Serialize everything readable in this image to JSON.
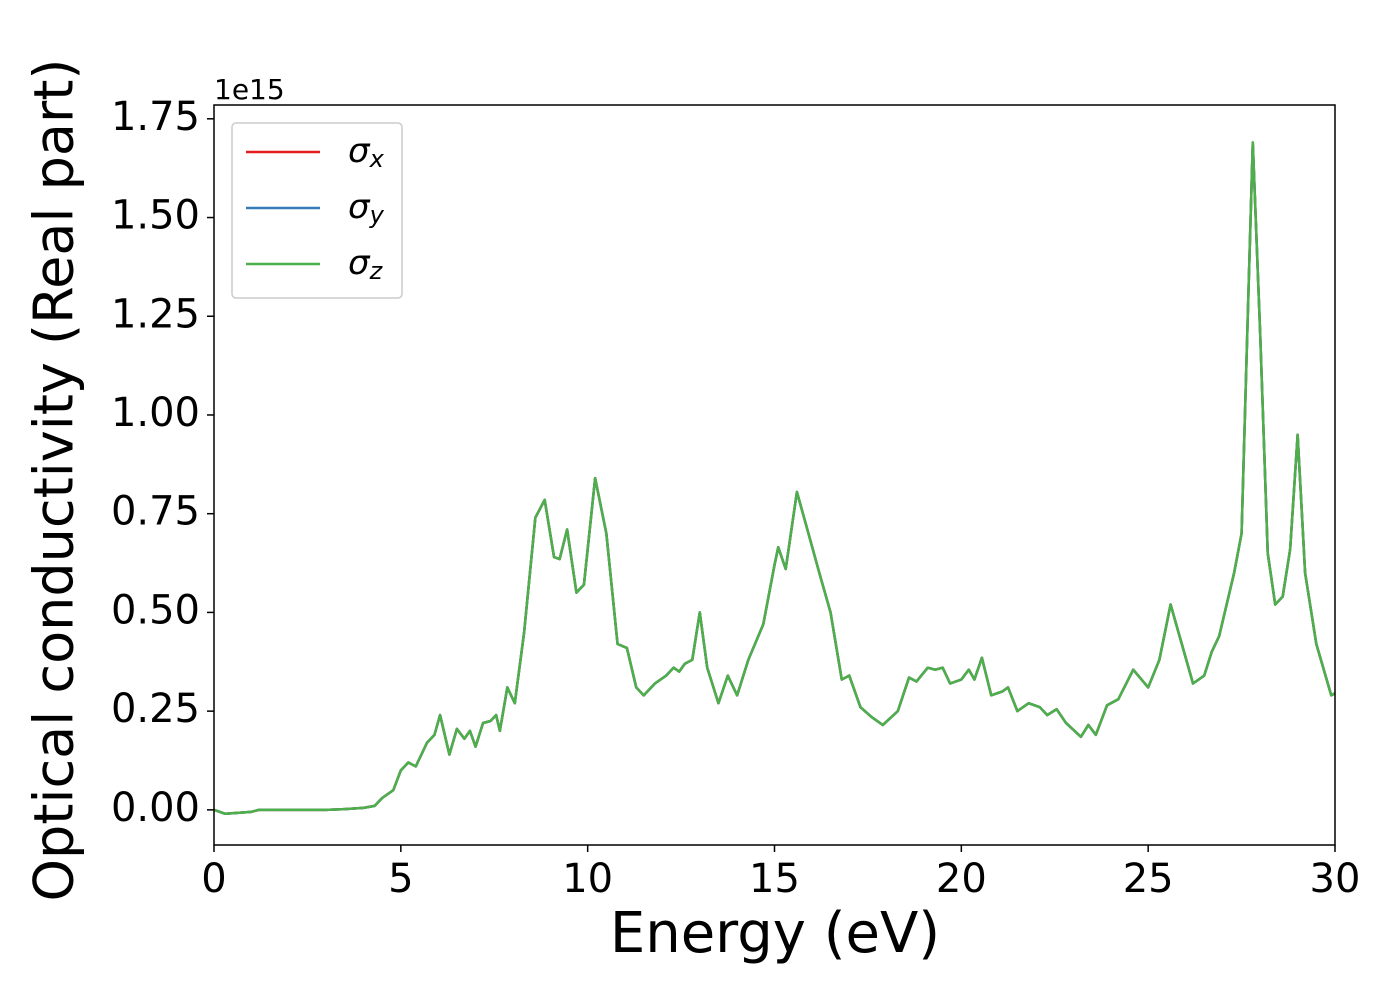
{
  "chart_data": {
    "type": "line",
    "xlabel": "Energy (eV)",
    "ylabel": "Optical conductivity (Real part)",
    "y_offset_label": "1e15",
    "xlim": [
      0,
      30
    ],
    "xticks": [
      0,
      5,
      10,
      15,
      20,
      25,
      30
    ],
    "ylim": [
      -0.089,
      1.785
    ],
    "yticks": [
      {
        "value": 0,
        "label": "0.00"
      },
      0.25,
      {
        "value": 0.5,
        "label": "0.50"
      },
      0.75,
      {
        "value": 1,
        "label": "1.00"
      },
      1.25,
      {
        "value": 1.5,
        "label": "1.50"
      },
      1.75
    ],
    "legend": "upper left",
    "x": [
      0,
      0.3,
      1,
      1.2,
      2,
      3,
      3.5,
      4,
      4.3,
      4.5,
      4.8,
      5,
      5.2,
      5.4,
      5.7,
      5.9,
      6.05,
      6.3,
      6.5,
      6.7,
      6.85,
      7,
      7.2,
      7.4,
      7.55,
      7.65,
      7.85,
      8.05,
      8.3,
      8.6,
      8.85,
      9.1,
      9.25,
      9.45,
      9.7,
      9.9,
      10.2,
      10.5,
      10.8,
      11.05,
      11.3,
      11.5,
      11.8,
      12.1,
      12.3,
      12.45,
      12.6,
      12.8,
      13,
      13.2,
      13.5,
      13.75,
      14,
      14.3,
      14.7,
      15,
      15.1,
      15.3,
      15.6,
      15.85,
      16.2,
      16.5,
      16.8,
      17,
      17.3,
      17.6,
      17.9,
      18.3,
      18.6,
      18.8,
      19.1,
      19.3,
      19.5,
      19.7,
      20,
      20.2,
      20.35,
      20.55,
      20.8,
      21.1,
      21.25,
      21.5,
      21.8,
      22.1,
      22.3,
      22.55,
      22.8,
      23.2,
      23.4,
      23.6,
      23.9,
      24.2,
      24.6,
      25,
      25.3,
      25.6,
      25.9,
      26.2,
      26.5,
      26.7,
      26.9,
      27.1,
      27.3,
      27.5,
      27.65,
      27.8,
      28,
      28.2,
      28.4,
      28.6,
      28.8,
      29,
      29.2,
      29.5,
      29.9,
      30
    ],
    "series": [
      {
        "name": "σx",
        "color": "#e41a1c",
        "values": [
          0,
          -0.01,
          -0.005,
          0,
          0,
          0,
          0.002,
          0.005,
          0.01,
          0.03,
          0.05,
          0.1,
          0.12,
          0.11,
          0.17,
          0.19,
          0.24,
          0.14,
          0.205,
          0.18,
          0.2,
          0.16,
          0.22,
          0.225,
          0.24,
          0.2,
          0.31,
          0.27,
          0.45,
          0.74,
          0.785,
          0.64,
          0.635,
          0.71,
          0.55,
          0.57,
          0.84,
          0.7,
          0.42,
          0.41,
          0.31,
          0.29,
          0.32,
          0.34,
          0.36,
          0.35,
          0.37,
          0.38,
          0.5,
          0.36,
          0.27,
          0.34,
          0.29,
          0.38,
          0.47,
          0.62,
          0.665,
          0.61,
          0.805,
          0.72,
          0.6,
          0.5,
          0.33,
          0.34,
          0.26,
          0.235,
          0.215,
          0.25,
          0.335,
          0.325,
          0.36,
          0.355,
          0.36,
          0.32,
          0.33,
          0.355,
          0.33,
          0.385,
          0.29,
          0.3,
          0.31,
          0.25,
          0.27,
          0.26,
          0.24,
          0.255,
          0.22,
          0.185,
          0.215,
          0.19,
          0.265,
          0.28,
          0.355,
          0.31,
          0.38,
          0.52,
          0.42,
          0.32,
          0.34,
          0.4,
          0.44,
          0.52,
          0.6,
          0.7,
          1.2,
          1.69,
          1.2,
          0.65,
          0.52,
          0.54,
          0.66,
          0.95,
          0.6,
          0.42,
          0.29,
          0.295
        ]
      },
      {
        "name": "σy",
        "color": "#377eb8",
        "values": [
          0,
          -0.01,
          -0.005,
          0,
          0,
          0,
          0.002,
          0.005,
          0.01,
          0.03,
          0.05,
          0.1,
          0.12,
          0.11,
          0.17,
          0.19,
          0.24,
          0.14,
          0.205,
          0.18,
          0.2,
          0.16,
          0.22,
          0.225,
          0.24,
          0.2,
          0.31,
          0.27,
          0.45,
          0.74,
          0.785,
          0.64,
          0.635,
          0.71,
          0.55,
          0.57,
          0.84,
          0.7,
          0.42,
          0.41,
          0.31,
          0.29,
          0.32,
          0.34,
          0.36,
          0.35,
          0.37,
          0.38,
          0.5,
          0.36,
          0.27,
          0.34,
          0.29,
          0.38,
          0.47,
          0.62,
          0.665,
          0.61,
          0.805,
          0.72,
          0.6,
          0.5,
          0.33,
          0.34,
          0.26,
          0.235,
          0.215,
          0.25,
          0.335,
          0.325,
          0.36,
          0.355,
          0.36,
          0.32,
          0.33,
          0.355,
          0.33,
          0.385,
          0.29,
          0.3,
          0.31,
          0.25,
          0.27,
          0.26,
          0.24,
          0.255,
          0.22,
          0.185,
          0.215,
          0.19,
          0.265,
          0.28,
          0.355,
          0.31,
          0.38,
          0.52,
          0.42,
          0.32,
          0.34,
          0.4,
          0.44,
          0.52,
          0.6,
          0.7,
          1.2,
          1.69,
          1.2,
          0.65,
          0.52,
          0.54,
          0.66,
          0.95,
          0.6,
          0.42,
          0.29,
          0.295
        ]
      },
      {
        "name": "σz",
        "color": "#4daf4a",
        "values": [
          0,
          -0.01,
          -0.005,
          0,
          0,
          0,
          0.002,
          0.005,
          0.01,
          0.03,
          0.05,
          0.1,
          0.12,
          0.11,
          0.17,
          0.19,
          0.24,
          0.14,
          0.205,
          0.18,
          0.2,
          0.16,
          0.22,
          0.225,
          0.24,
          0.2,
          0.31,
          0.27,
          0.45,
          0.74,
          0.785,
          0.64,
          0.635,
          0.71,
          0.55,
          0.57,
          0.84,
          0.7,
          0.42,
          0.41,
          0.31,
          0.29,
          0.32,
          0.34,
          0.36,
          0.35,
          0.37,
          0.38,
          0.5,
          0.36,
          0.27,
          0.34,
          0.29,
          0.38,
          0.47,
          0.62,
          0.665,
          0.61,
          0.805,
          0.72,
          0.6,
          0.5,
          0.33,
          0.34,
          0.26,
          0.235,
          0.215,
          0.25,
          0.335,
          0.325,
          0.36,
          0.355,
          0.36,
          0.32,
          0.33,
          0.355,
          0.33,
          0.385,
          0.29,
          0.3,
          0.31,
          0.25,
          0.27,
          0.26,
          0.24,
          0.255,
          0.22,
          0.185,
          0.215,
          0.19,
          0.265,
          0.28,
          0.355,
          0.31,
          0.38,
          0.52,
          0.42,
          0.32,
          0.34,
          0.4,
          0.44,
          0.52,
          0.6,
          0.7,
          1.2,
          1.69,
          1.2,
          0.65,
          0.52,
          0.54,
          0.66,
          0.95,
          0.6,
          0.42,
          0.29,
          0.295
        ]
      }
    ]
  }
}
